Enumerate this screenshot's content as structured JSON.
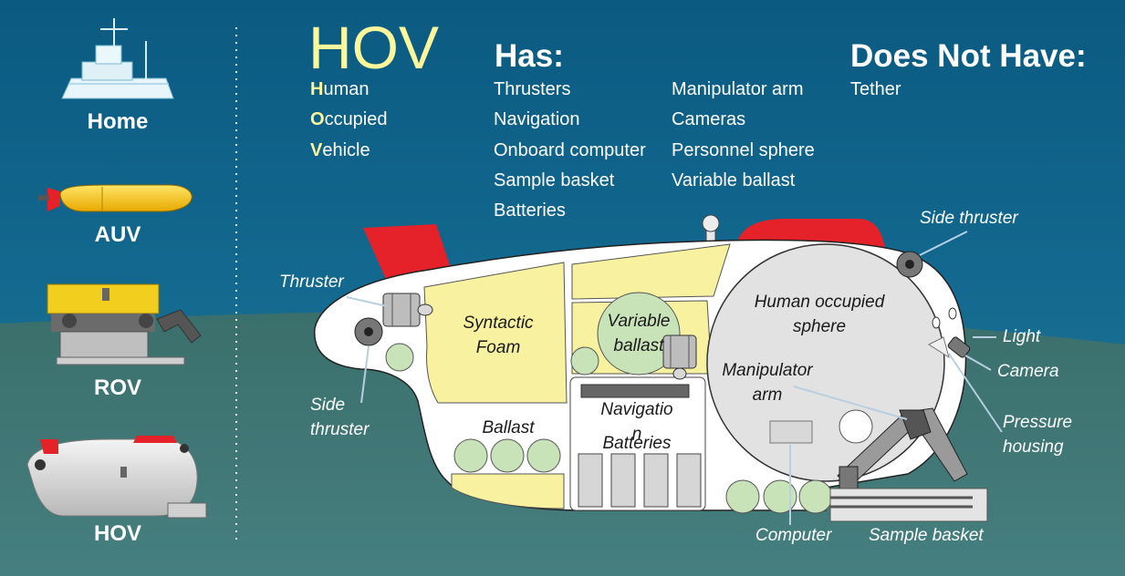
{
  "nav": {
    "items": [
      {
        "label": "Home",
        "icon": "ship-icon"
      },
      {
        "label": "AUV",
        "icon": "auv-icon"
      },
      {
        "label": "ROV",
        "icon": "rov-icon"
      },
      {
        "label": "HOV",
        "icon": "hov-icon"
      }
    ]
  },
  "title": {
    "big": "HOV",
    "acronym": [
      {
        "first": "H",
        "rest": "uman"
      },
      {
        "first": "O",
        "rest": "ccupied"
      },
      {
        "first": "V",
        "rest": "ehicle"
      }
    ]
  },
  "has": {
    "heading": "Has:",
    "col1": [
      "Thrusters",
      "Navigation",
      "Onboard computer",
      "Sample basket",
      "Batteries"
    ],
    "col2": [
      "Manipulator arm",
      "Cameras",
      "Personnel sphere",
      "Variable ballast"
    ]
  },
  "not_have": {
    "heading": "Does Not Have:",
    "items": [
      "Tether"
    ]
  },
  "diagram": {
    "outer_labels": {
      "thruster": "Thruster",
      "side_thruster_left": "Side\nthruster",
      "side_thruster_right": "Side thruster",
      "light": "Light",
      "camera": "Camera",
      "pressure_housing": "Pressure\nhousing",
      "computer": "Computer",
      "sample_basket": "Sample basket"
    },
    "inner_labels": {
      "syntactic_foam": "Syntactic\nFoam",
      "variable_ballast": "Variable\nballast",
      "human_sphere": "Human occupied\nsphere",
      "manipulator_arm": "Manipulator\narm",
      "navigation": "Navigatio\nn",
      "ballast": "Ballast",
      "batteries": "Batteries"
    }
  },
  "colors": {
    "sea_top": "#0f5f86",
    "sea_bottom": "#3d7a78",
    "accent_yellow": "#fbf79a",
    "fin_red": "#e5222a",
    "foam": "#f8f2a0",
    "ballast_green": "#c9e3b9"
  }
}
